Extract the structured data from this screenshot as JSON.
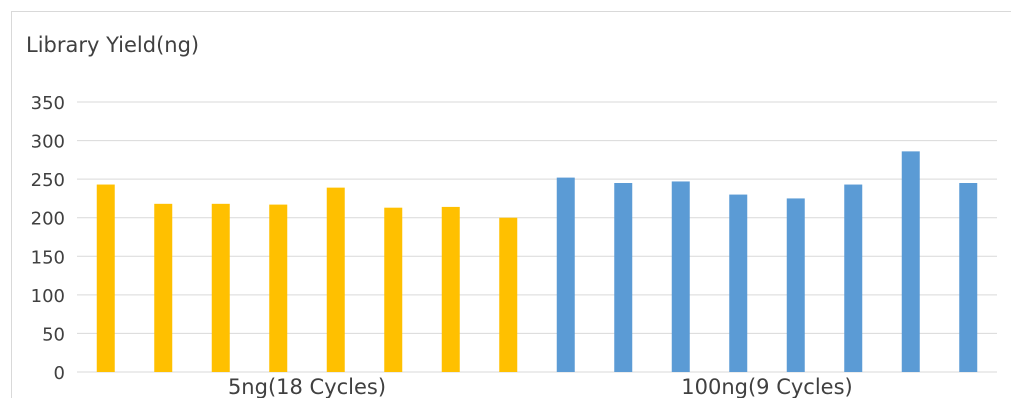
{
  "chart_data": {
    "type": "bar",
    "title": "Library Yield(ng)",
    "xlabel": "",
    "ylabel": "",
    "ylim": [
      0,
      350
    ],
    "yticks": [
      0,
      50,
      100,
      150,
      200,
      250,
      300,
      350
    ],
    "grid": true,
    "legend": "none",
    "groups": [
      {
        "label": "5ng(18 Cycles)",
        "color": "#ffc000",
        "values": [
          243,
          218,
          218,
          217,
          239,
          213,
          214,
          200
        ]
      },
      {
        "label": "100ng(9 Cycles)",
        "color": "#5b9bd5",
        "values": [
          252,
          245,
          247,
          230,
          225,
          243,
          286,
          245
        ]
      }
    ]
  }
}
